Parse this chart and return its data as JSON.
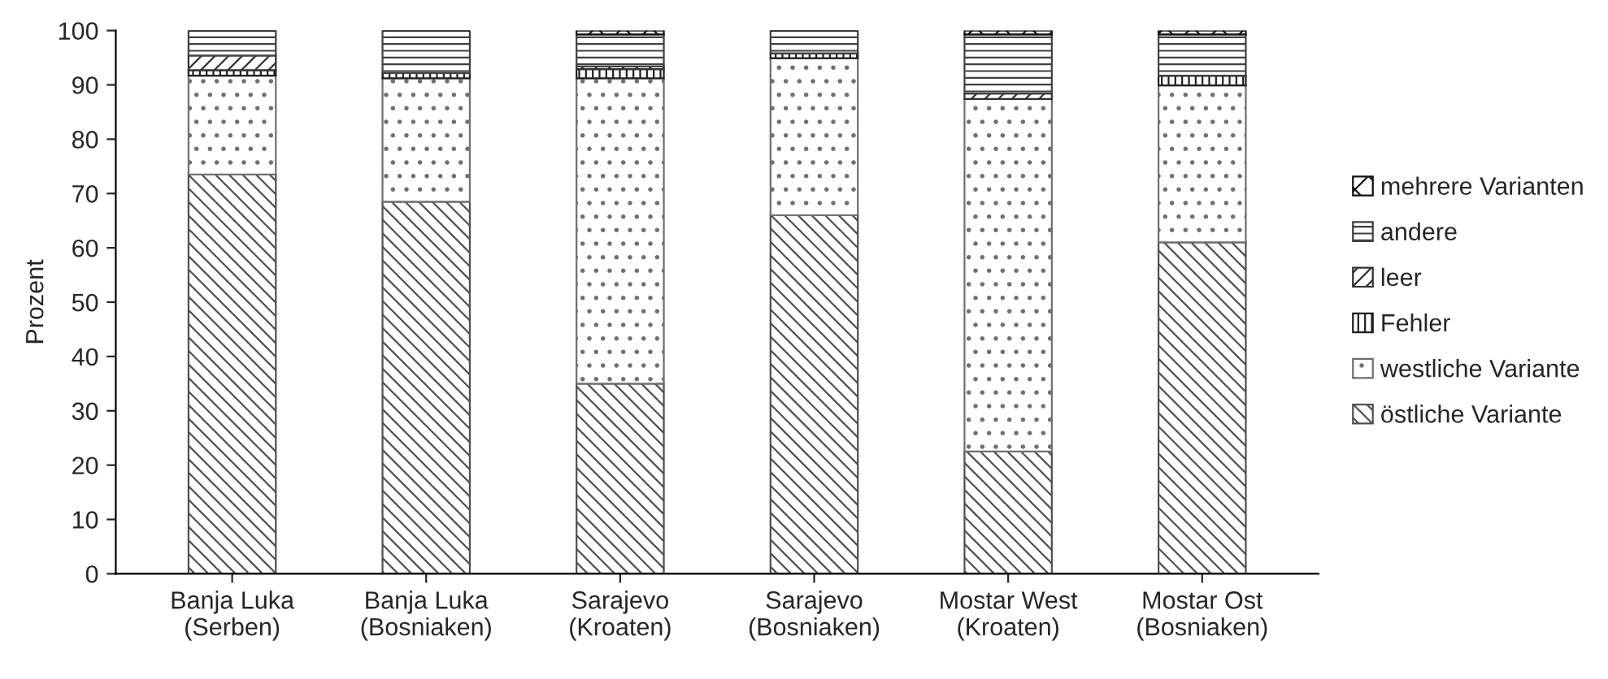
{
  "chart_data": {
    "type": "bar",
    "stacked": true,
    "ylabel": "Prozent",
    "ylim": [
      0,
      100
    ],
    "yticks": [
      0,
      10,
      20,
      30,
      40,
      50,
      60,
      70,
      80,
      90,
      100
    ],
    "grid": false,
    "legend": "right",
    "categories": [
      "Banja Luka\n(Serben)",
      "Banja Luka\n(Bosniaken)",
      "Sarajevo\n(Kroaten)",
      "Sarajevo\n(Bosniaken)",
      "Mostar West\n(Kroaten)",
      "Mostar Ost\n(Bosniaken)"
    ],
    "series": [
      {
        "name": "östliche Variante",
        "color": "#505050",
        "values": [
          73.5,
          68.5,
          35,
          66,
          22.5,
          61
        ]
      },
      {
        "name": "westliche Variante",
        "color": "#707070",
        "values": [
          18.2,
          22.7,
          56.2,
          28.9,
          64.9,
          28.9
        ]
      },
      {
        "name": "Fehler",
        "color": "#202020",
        "values": [
          1,
          1,
          1.7,
          0.9,
          0,
          1.8
        ]
      },
      {
        "name": "leer",
        "color": "#303030",
        "values": [
          2.7,
          0,
          0.5,
          0,
          1,
          0
        ]
      },
      {
        "name": "andere",
        "color": "#404040",
        "values": [
          4.6,
          7.8,
          5.9,
          4.2,
          10.9,
          7.6
        ]
      },
      {
        "name": "mehrere Varianten",
        "color": "#101010",
        "values": [
          0,
          0,
          0.7,
          0,
          0.7,
          0.7
        ]
      }
    ]
  }
}
